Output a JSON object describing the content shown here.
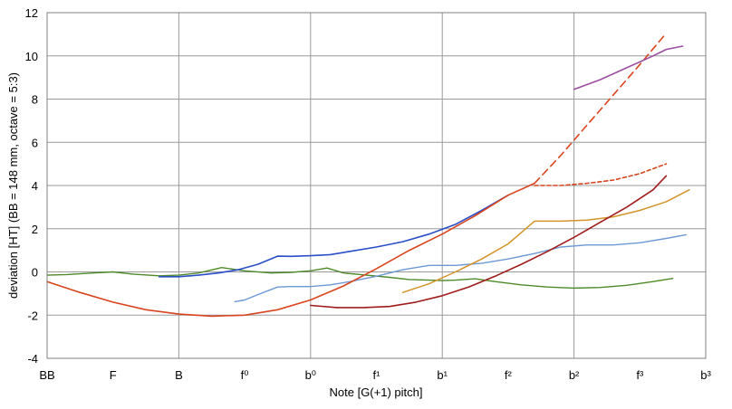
{
  "chart_data": {
    "type": "line",
    "xlabel": "Note [G(+1) pitch]",
    "ylabel": "deviation [HT] (BB = 148 mm, octave = 5:3)",
    "x_categories": [
      "BB",
      "F",
      "B",
      "f⁰",
      "b⁰",
      "f¹",
      "b¹",
      "f²",
      "b²",
      "f³",
      "b³"
    ],
    "xlim": [
      0,
      10
    ],
    "ylim": [
      -4,
      12
    ],
    "yticks": [
      -4,
      -2,
      0,
      2,
      4,
      6,
      8,
      10,
      12
    ],
    "grid": true,
    "plot_background": "#ffffff",
    "series": [
      {
        "name": "green",
        "color": "#4f8a2a",
        "width": 1.4,
        "dash": false,
        "x": [
          0,
          0.3,
          0.7,
          1.0,
          1.3,
          1.7,
          2.0,
          2.3,
          2.65,
          3.0,
          3.4,
          3.7,
          4.0,
          4.25,
          4.5,
          4.85,
          5.2,
          5.5,
          5.8,
          6.0,
          6.2,
          6.5,
          6.8,
          7.2,
          7.6,
          8.0,
          8.4,
          8.8,
          9.2,
          9.5
        ],
        "y": [
          -0.15,
          -0.12,
          -0.05,
          0.0,
          -0.1,
          -0.18,
          -0.15,
          -0.05,
          0.2,
          0.05,
          -0.05,
          -0.02,
          0.05,
          0.18,
          -0.05,
          -0.15,
          -0.25,
          -0.35,
          -0.38,
          -0.4,
          -0.38,
          -0.32,
          -0.45,
          -0.6,
          -0.7,
          -0.75,
          -0.72,
          -0.62,
          -0.45,
          -0.3
        ]
      },
      {
        "name": "blue",
        "color": "#2a4ec8",
        "width": 1.6,
        "dash": false,
        "x": [
          1.7,
          2.0,
          2.3,
          2.6,
          2.9,
          3.2,
          3.5,
          3.7,
          4.0,
          4.3,
          4.6,
          5.0,
          5.4,
          5.8,
          6.2,
          6.6,
          7.0
        ],
        "y": [
          -0.22,
          -0.22,
          -0.15,
          -0.05,
          0.1,
          0.35,
          0.73,
          0.72,
          0.75,
          0.8,
          0.95,
          1.15,
          1.4,
          1.75,
          2.2,
          2.85,
          3.55
        ]
      },
      {
        "name": "light-blue",
        "color": "#6d98d4",
        "width": 1.4,
        "dash": false,
        "x": [
          2.85,
          3.0,
          3.2,
          3.5,
          3.7,
          4.0,
          4.3,
          4.6,
          5.0,
          5.4,
          5.8,
          6.2,
          6.6,
          7.0,
          7.4,
          7.8,
          8.2,
          8.6,
          9.0,
          9.4,
          9.7
        ],
        "y": [
          -1.38,
          -1.3,
          -1.05,
          -0.7,
          -0.68,
          -0.68,
          -0.6,
          -0.45,
          -0.2,
          0.1,
          0.3,
          0.3,
          0.4,
          0.6,
          0.85,
          1.15,
          1.25,
          1.25,
          1.35,
          1.55,
          1.72
        ]
      },
      {
        "name": "orange",
        "color": "#d4942a",
        "width": 1.5,
        "dash": false,
        "x": [
          5.4,
          5.8,
          6.2,
          6.6,
          7.0,
          7.4,
          7.8,
          8.2,
          8.6,
          9.0,
          9.4,
          9.75
        ],
        "y": [
          -0.95,
          -0.55,
          0.0,
          0.6,
          1.3,
          2.35,
          2.35,
          2.4,
          2.55,
          2.85,
          3.25,
          3.8
        ]
      },
      {
        "name": "red",
        "color": "#d9451e",
        "width": 1.6,
        "dash": false,
        "x": [
          0,
          0.5,
          1.0,
          1.5,
          2.0,
          2.5,
          3.0,
          3.5,
          4.0,
          4.5,
          5.0,
          5.5,
          6.0,
          6.5,
          7.0,
          7.4
        ],
        "y": [
          -0.45,
          -0.95,
          -1.4,
          -1.75,
          -1.95,
          -2.05,
          -2.0,
          -1.75,
          -1.3,
          -0.65,
          0.15,
          1.0,
          1.75,
          2.6,
          3.55,
          4.1
        ]
      },
      {
        "name": "red-dashed",
        "color": "#d9451e",
        "width": 1.6,
        "dash": true,
        "x": [
          7.4,
          7.8,
          8.2,
          8.6,
          9.0,
          9.4
        ],
        "y": [
          4.1,
          5.4,
          6.8,
          8.2,
          9.6,
          11.05
        ]
      },
      {
        "name": "red-dotted",
        "color": "#d9451e",
        "width": 1.6,
        "dash": true,
        "x": [
          7.4,
          7.8,
          8.2,
          8.6,
          9.0,
          9.4
        ],
        "y": [
          4.0,
          4.0,
          4.1,
          4.25,
          4.55,
          5.0
        ]
      },
      {
        "name": "dark-red",
        "color": "#a01c1c",
        "width": 1.6,
        "dash": false,
        "x": [
          4.0,
          4.4,
          4.8,
          5.2,
          5.6,
          6.0,
          6.4,
          6.8,
          7.2,
          7.6,
          8.0,
          8.4,
          8.8,
          9.2,
          9.4
        ],
        "y": [
          -1.55,
          -1.65,
          -1.65,
          -1.6,
          -1.4,
          -1.1,
          -0.7,
          -0.2,
          0.35,
          0.95,
          1.6,
          2.3,
          3.0,
          3.8,
          4.45
        ]
      },
      {
        "name": "purple",
        "color": "#9c4ea0",
        "width": 1.6,
        "dash": false,
        "x": [
          8.0,
          8.4,
          8.8,
          9.2,
          9.4,
          9.65
        ],
        "y": [
          8.45,
          8.9,
          9.45,
          10.0,
          10.3,
          10.45
        ]
      }
    ]
  }
}
